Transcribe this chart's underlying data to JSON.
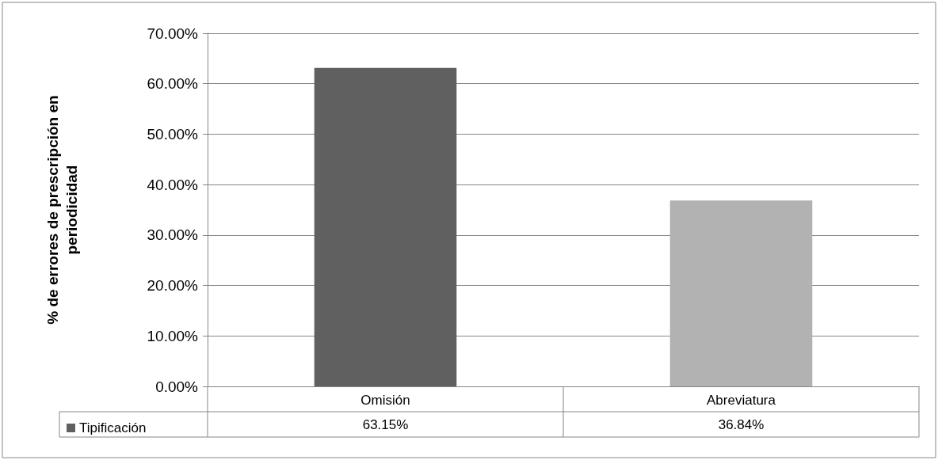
{
  "chart_data": {
    "type": "bar",
    "ylabel": "% de errores de prescripción en periodicidad",
    "categories": [
      "Omisión",
      "Abreviatura"
    ],
    "series": [
      {
        "name": "Tipificación",
        "color": "#606060",
        "colors": [
          "#606060",
          "#b2b2b2"
        ],
        "values": [
          63.15,
          36.84
        ],
        "value_labels": [
          "63.15%",
          "36.84%"
        ]
      }
    ],
    "ylim": [
      0,
      70
    ],
    "yticks": [
      {
        "value": 0,
        "label": "0.00%"
      },
      {
        "value": 10,
        "label": "10.00%"
      },
      {
        "value": 20,
        "label": "20.00%"
      },
      {
        "value": 30,
        "label": "30.00%"
      },
      {
        "value": 40,
        "label": "40.00%"
      },
      {
        "value": 50,
        "label": "50.00%"
      },
      {
        "value": 60,
        "label": "60.00%"
      },
      {
        "value": 70,
        "label": "70.00%"
      }
    ],
    "grid": "y",
    "legend": "bottom left"
  }
}
